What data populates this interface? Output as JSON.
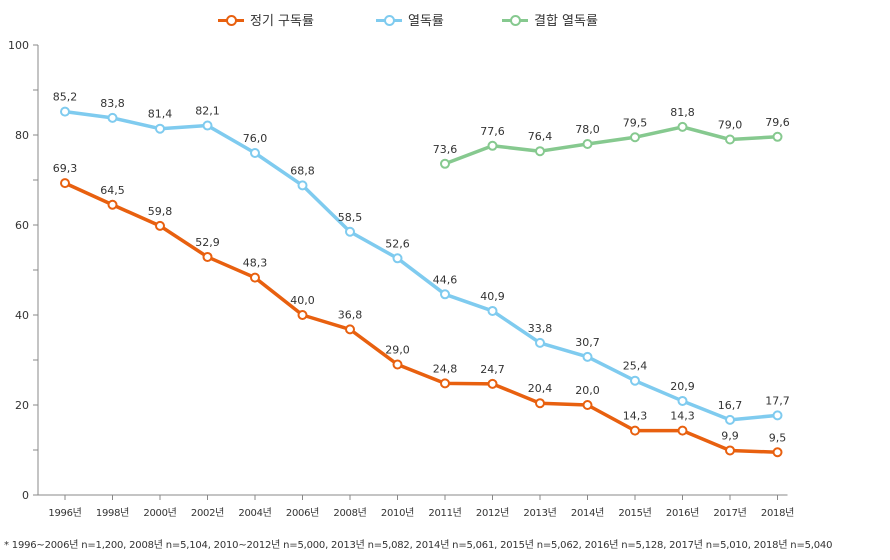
{
  "legend": {
    "items": [
      {
        "label": "정기 구독률",
        "color": "#E8600F"
      },
      {
        "label": "열독률",
        "color": "#7FCBEF"
      },
      {
        "label": "결합 열독률",
        "color": "#86C98F"
      }
    ]
  },
  "footnote": "* 1996~2006년 n=1,200, 2008년 n=5,104, 2010~2012년 n=5,000, 2013년 n=5,082, 2014년 n=5,061, 2015년 n=5,062, 2016년 n=5,128, 2017년 n=5,010, 2018년 n=5,040",
  "chart_data": {
    "type": "line",
    "categories": [
      "1996년",
      "1998년",
      "2000년",
      "2002년",
      "2004년",
      "2006년",
      "2008년",
      "2010년",
      "2011년",
      "2012년",
      "2013년",
      "2014년",
      "2015년",
      "2016년",
      "2017년",
      "2018년"
    ],
    "ylim": [
      0,
      100
    ],
    "yticks": [
      0,
      20,
      40,
      60,
      80,
      100
    ],
    "grid": false,
    "legend_position": "top-center",
    "series": [
      {
        "name": "정기 구독률",
        "color": "#E8600F",
        "values": [
          69.3,
          64.5,
          59.8,
          52.9,
          48.3,
          40.0,
          36.8,
          29.0,
          24.8,
          24.7,
          20.4,
          20.0,
          14.3,
          14.3,
          9.9,
          9.5
        ],
        "labels": [
          "69,3",
          "64,5",
          "59,8",
          "52,9",
          "48,3",
          "40,0",
          "36,8",
          "29,0",
          "24,8",
          "24,7",
          "20,4",
          "20,0",
          "14,3",
          "14,3",
          "9,9",
          "9,5"
        ]
      },
      {
        "name": "열독률",
        "color": "#7FCBEF",
        "values": [
          85.2,
          83.8,
          81.4,
          82.1,
          76.0,
          68.8,
          58.5,
          52.6,
          44.6,
          40.9,
          33.8,
          30.7,
          25.4,
          20.9,
          16.7,
          17.7
        ],
        "labels": [
          "85,2",
          "83,8",
          "81,4",
          "82,1",
          "76,0",
          "68,8",
          "58,5",
          "52,6",
          "44,6",
          "40,9",
          "33,8",
          "30,7",
          "25,4",
          "20,9",
          "16,7",
          "17,7"
        ]
      },
      {
        "name": "결합 열독률",
        "color": "#86C98F",
        "values": [
          null,
          null,
          null,
          null,
          null,
          null,
          null,
          null,
          73.6,
          77.6,
          76.4,
          78.0,
          79.5,
          81.8,
          79.0,
          79.6
        ],
        "labels": [
          null,
          null,
          null,
          null,
          null,
          null,
          null,
          null,
          "73,6",
          "77,6",
          "76,4",
          "78,0",
          "79,5",
          "81,8",
          "79,0",
          "79,6"
        ]
      }
    ]
  }
}
